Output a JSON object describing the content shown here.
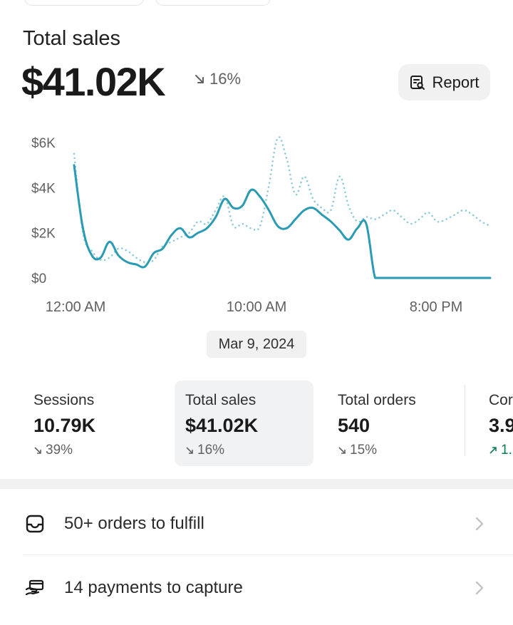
{
  "header": {
    "title": "Total sales",
    "value": "$41.02K",
    "change": "16%",
    "report_label": "Report"
  },
  "chart_data": {
    "type": "line",
    "x_tick_labels": [
      "12:00 AM",
      "10:00 AM",
      "8:00 PM"
    ],
    "y_tick_labels": [
      "$6K",
      "$4K",
      "$2K",
      "$0"
    ],
    "ylim": [
      0,
      6000
    ],
    "x": [
      0,
      1,
      2,
      3,
      4,
      5,
      6,
      7,
      8,
      9,
      10,
      11,
      12,
      13,
      14,
      15,
      16,
      17,
      18,
      19,
      20,
      21,
      22,
      23,
      24,
      25,
      26,
      27,
      28,
      29,
      30,
      31,
      32,
      33,
      34,
      35,
      36,
      37,
      38,
      39,
      40,
      41,
      42,
      43,
      44,
      45,
      46,
      47
    ],
    "series": [
      {
        "style": "solid",
        "color": "#2a9bb5",
        "values": [
          5000,
          2200,
          1000,
          900,
          1600,
          1000,
          700,
          600,
          500,
          1100,
          1300,
          1900,
          2200,
          1800,
          2000,
          2200,
          2700,
          3500,
          3100,
          3200,
          3900,
          3600,
          3000,
          2300,
          2200,
          2600,
          3000,
          3100,
          2800,
          2500,
          2100,
          1700,
          2200,
          2400,
          0,
          0,
          0,
          0,
          0,
          0,
          0,
          0,
          0,
          0,
          0,
          0,
          0,
          0
        ]
      },
      {
        "style": "dotted",
        "color": "#8fcbd8",
        "values": [
          5500,
          2000,
          1200,
          800,
          900,
          1300,
          1200,
          900,
          700,
          800,
          1400,
          1600,
          1800,
          2000,
          2500,
          2400,
          3000,
          3600,
          2300,
          2400,
          2200,
          2300,
          4100,
          6200,
          5300,
          3700,
          4500,
          3500,
          3100,
          3000,
          4500,
          3200,
          2500,
          2700,
          2600,
          2800,
          3000,
          2700,
          2400,
          2600,
          2900,
          2500,
          2600,
          2800,
          3000,
          2800,
          2500,
          2300
        ]
      }
    ]
  },
  "date_label": "Mar 9, 2024",
  "metrics": [
    {
      "label": "Sessions",
      "value": "10.79K",
      "delta": "39%",
      "direction": "down"
    },
    {
      "label": "Total sales",
      "value": "$41.02K",
      "delta": "16%",
      "direction": "down"
    },
    {
      "label": "Total orders",
      "value": "540",
      "delta": "15%",
      "direction": "down"
    },
    {
      "label": "Cor",
      "value": "3.9",
      "delta": "1.",
      "direction": "up"
    }
  ],
  "tasks": [
    {
      "icon": "inbox-icon",
      "label": "50+ orders to fulfill"
    },
    {
      "icon": "hand-card-icon",
      "label": "14 payments to capture"
    }
  ]
}
